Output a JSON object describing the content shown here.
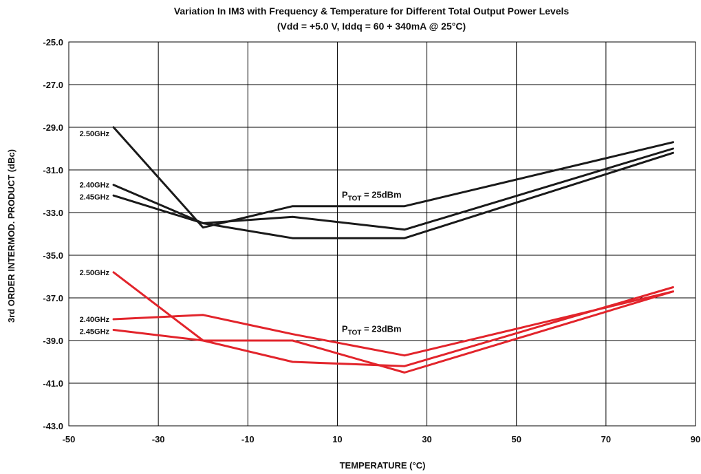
{
  "chart_data": {
    "type": "line",
    "title": "Variation In IM3 with Frequency & Temperature for Different Total Output Power Levels",
    "subtitle": "(Vdd = +5.0 V, Iddq = 60 + 340mA @ 25°C)",
    "xlabel": "TEMPERATURE (°C)",
    "ylabel": "3rd ORDER INTERMOD. PRODUCT (dBc)",
    "xlim": [
      -50,
      90
    ],
    "ylim": [
      -43,
      -25
    ],
    "x_ticks": [
      "-50",
      "-30",
      "-10",
      "10",
      "30",
      "50",
      "70",
      "90"
    ],
    "y_ticks": [
      "-25.0",
      "-27.0",
      "-29.0",
      "-31.0",
      "-33.0",
      "-35.0",
      "-37.0",
      "-39.0",
      "-41.0",
      "-43.0"
    ],
    "grid": true,
    "annotations": [
      {
        "main": "P",
        "sub": "TOT",
        "rest": " = 25dBm",
        "x": 11,
        "y": -32.3
      },
      {
        "main": "P",
        "sub": "TOT",
        "rest": " = 23dBm",
        "x": 11,
        "y": -38.6
      }
    ],
    "series": [
      {
        "name": "2.50GHz",
        "group": "P_TOT = 25dBm",
        "color": "#1a1a1a",
        "x": [
          -40,
          -20,
          0,
          25,
          85
        ],
        "y": [
          -29.0,
          -33.7,
          -32.7,
          -32.7,
          -29.7
        ]
      },
      {
        "name": "2.40GHz",
        "group": "P_TOT = 25dBm",
        "color": "#1a1a1a",
        "x": [
          -40,
          -20,
          0,
          25,
          85
        ],
        "y": [
          -31.7,
          -33.5,
          -34.2,
          -34.2,
          -30.2
        ]
      },
      {
        "name": "2.45GHz",
        "group": "P_TOT = 25dBm",
        "color": "#1a1a1a",
        "x": [
          -40,
          -20,
          0,
          25,
          85
        ],
        "y": [
          -32.2,
          -33.5,
          -33.2,
          -33.8,
          -30.0
        ]
      },
      {
        "name": "2.50GHz",
        "group": "P_TOT = 23dBm",
        "color": "#e2242b",
        "x": [
          -40,
          -20,
          0,
          25,
          85
        ],
        "y": [
          -35.8,
          -39.0,
          -39.0,
          -40.5,
          -36.7
        ]
      },
      {
        "name": "2.40GHz",
        "group": "P_TOT = 23dBm",
        "color": "#e2242b",
        "x": [
          -40,
          -20,
          0,
          25,
          85
        ],
        "y": [
          -38.0,
          -37.8,
          -38.7,
          -39.7,
          -36.7
        ]
      },
      {
        "name": "2.45GHz",
        "group": "P_TOT = 23dBm",
        "color": "#e2242b",
        "x": [
          -40,
          -20,
          0,
          25,
          85
        ],
        "y": [
          -38.5,
          -39.0,
          -40.0,
          -40.2,
          -36.5
        ]
      }
    ]
  }
}
